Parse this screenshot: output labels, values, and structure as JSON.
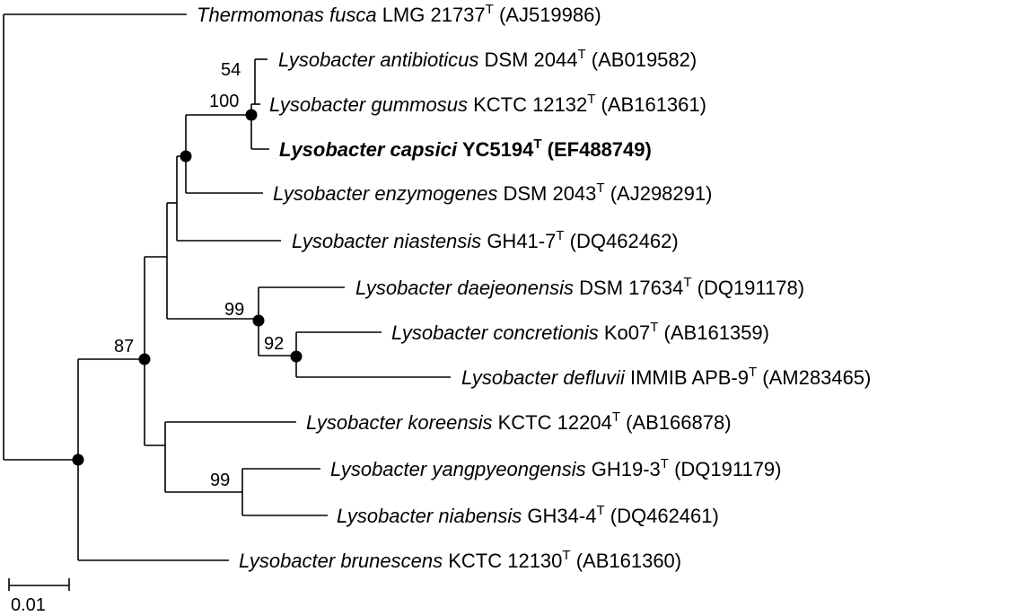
{
  "colors": {
    "line": "#000000",
    "text": "#000000",
    "node": "#000000",
    "background": "#ffffff"
  },
  "scale_bar": {
    "label": "0.01"
  },
  "taxa": [
    {
      "id": "thermomonas",
      "genus": "Thermomonas",
      "epithet": "fusca",
      "strain": "LMG 21737",
      "sup": "T",
      "accession": "(AJ519986)",
      "bold": false
    },
    {
      "id": "antibioticus",
      "genus": "Lysobacter",
      "epithet": "antibioticus",
      "strain": "DSM 2044",
      "sup": "T",
      "accession": "(AB019582)",
      "bold": false
    },
    {
      "id": "gummosus",
      "genus": "Lysobacter",
      "epithet": "gummosus",
      "strain": "KCTC 12132",
      "sup": "T",
      "accession": "(AB161361)",
      "bold": false
    },
    {
      "id": "capsici",
      "genus": "Lysobacter",
      "epithet": "capsici",
      "strain": "YC5194",
      "sup": "T",
      "accession": "(EF488749)",
      "bold": true
    },
    {
      "id": "enzymogenes",
      "genus": "Lysobacter",
      "epithet": "enzymogenes",
      "strain": "DSM 2043",
      "sup": "T",
      "accession": "(AJ298291)",
      "bold": false
    },
    {
      "id": "niastensis",
      "genus": "Lysobacter",
      "epithet": "niastensis",
      "strain": "GH41-7",
      "sup": "T",
      "accession": "(DQ462462)",
      "bold": false
    },
    {
      "id": "daejeonensis",
      "genus": "Lysobacter",
      "epithet": "daejeonensis",
      "strain": "DSM 17634",
      "sup": "T",
      "accession": "(DQ191178)",
      "bold": false
    },
    {
      "id": "concretionis",
      "genus": "Lysobacter",
      "epithet": "concretionis",
      "strain": "Ko07",
      "sup": "T",
      "accession": "(AB161359)",
      "bold": false
    },
    {
      "id": "defluvii",
      "genus": "Lysobacter",
      "epithet": "defluvii",
      "strain": "IMMIB APB-9",
      "sup": "T",
      "accession": "(AM283465)",
      "bold": false
    },
    {
      "id": "koreensis",
      "genus": "Lysobacter",
      "epithet": "koreensis",
      "strain": "KCTC 12204",
      "sup": "T",
      "accession": "(AB166878)",
      "bold": false
    },
    {
      "id": "yangpyeongensis",
      "genus": "Lysobacter",
      "epithet": "yangpyeongensis",
      "strain": "GH19-3",
      "sup": "T",
      "accession": "(DQ191179)",
      "bold": false
    },
    {
      "id": "niabensis",
      "genus": "Lysobacter",
      "epithet": "niabensis",
      "strain": "GH34-4",
      "sup": "T",
      "accession": "(DQ462461)",
      "bold": false
    },
    {
      "id": "brunescens",
      "genus": "Lysobacter",
      "epithet": "brunescens",
      "strain": "KCTC 12130",
      "sup": "T",
      "accession": "(AB161360)",
      "bold": false
    }
  ],
  "bootstrap": [
    {
      "node": "antibioticus-gummosus",
      "value": "54"
    },
    {
      "node": "antibioticus-gummosus-capsici",
      "value": "100"
    },
    {
      "node": "daejeonensis-clade",
      "value": "99"
    },
    {
      "node": "concretionis-defluvii",
      "value": "92"
    },
    {
      "node": "lower-clade",
      "value": "87"
    },
    {
      "node": "yangpyeongensis-niabensis",
      "value": "99"
    }
  ]
}
